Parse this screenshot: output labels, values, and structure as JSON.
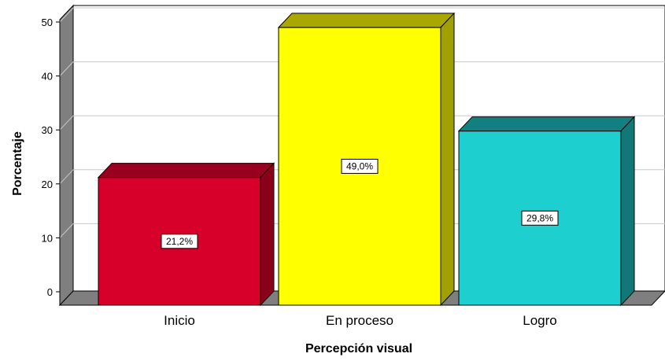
{
  "chart_data": {
    "type": "bar",
    "title": "",
    "xlabel": "Percepción visual",
    "ylabel": "Porcentaje",
    "ylim": [
      0,
      50
    ],
    "yticks": [
      0,
      10,
      20,
      30,
      40,
      50
    ],
    "grid": true,
    "categories": [
      "Inicio",
      "En proceso",
      "Logro"
    ],
    "values": [
      21.2,
      49.0,
      29.8
    ],
    "data_labels": [
      "21,2%",
      "49,0%",
      "29,8%"
    ],
    "colors": {
      "front": [
        "#d6002a",
        "#ffff00",
        "#1ecfcf"
      ],
      "top": [
        "#99001e",
        "#a8a800",
        "#128080"
      ],
      "side": [
        "#8a001b",
        "#a0a000",
        "#117777"
      ],
      "wall": "#7f7f7f",
      "gridline": "#c8c8c8"
    }
  }
}
